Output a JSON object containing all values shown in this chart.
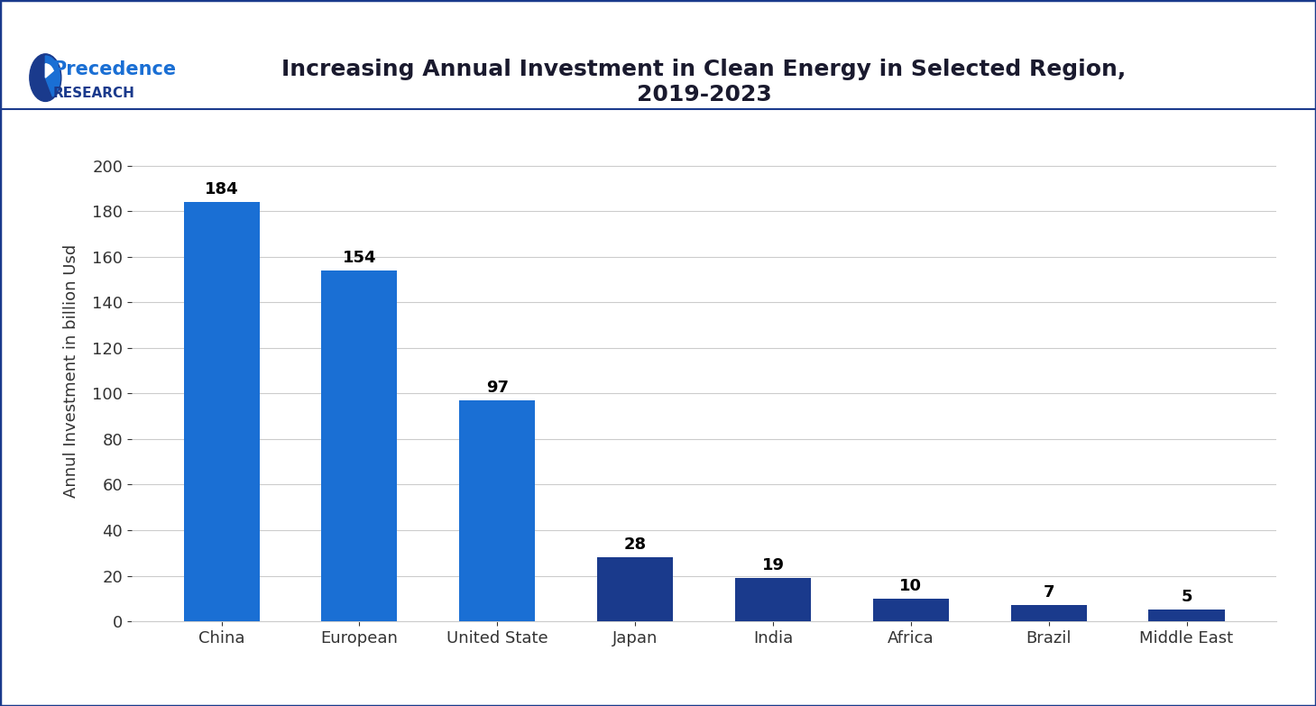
{
  "title": "Increasing Annual Investment in Clean Energy in Selected Region,\n2019-2023",
  "ylabel": "Annul Investment in billion Usd",
  "categories": [
    "China",
    "European",
    "United State",
    "Japan",
    "India",
    "Africa",
    "Brazil",
    "Middle East"
  ],
  "values": [
    184,
    154,
    97,
    28,
    19,
    10,
    7,
    5
  ],
  "bar_colors": [
    "#1a6fd4",
    "#1a6fd4",
    "#1a6fd4",
    "#1a3a8c",
    "#1a3a8c",
    "#1a3a8c",
    "#1a3a8c",
    "#1a3a8c"
  ],
  "ylim": [
    0,
    220
  ],
  "yticks": [
    0,
    20,
    40,
    60,
    80,
    100,
    120,
    140,
    160,
    180,
    200
  ],
  "title_fontsize": 18,
  "ylabel_fontsize": 13,
  "tick_fontsize": 13,
  "label_fontsize": 13,
  "background_color": "#ffffff",
  "grid_color": "#cccccc",
  "border_color": "#1a3a8c",
  "logo_text_precedence": "Precedence",
  "logo_text_research": "RESEARCH",
  "precedence_color": "#1a6fd4",
  "research_color": "#1a3a8c"
}
